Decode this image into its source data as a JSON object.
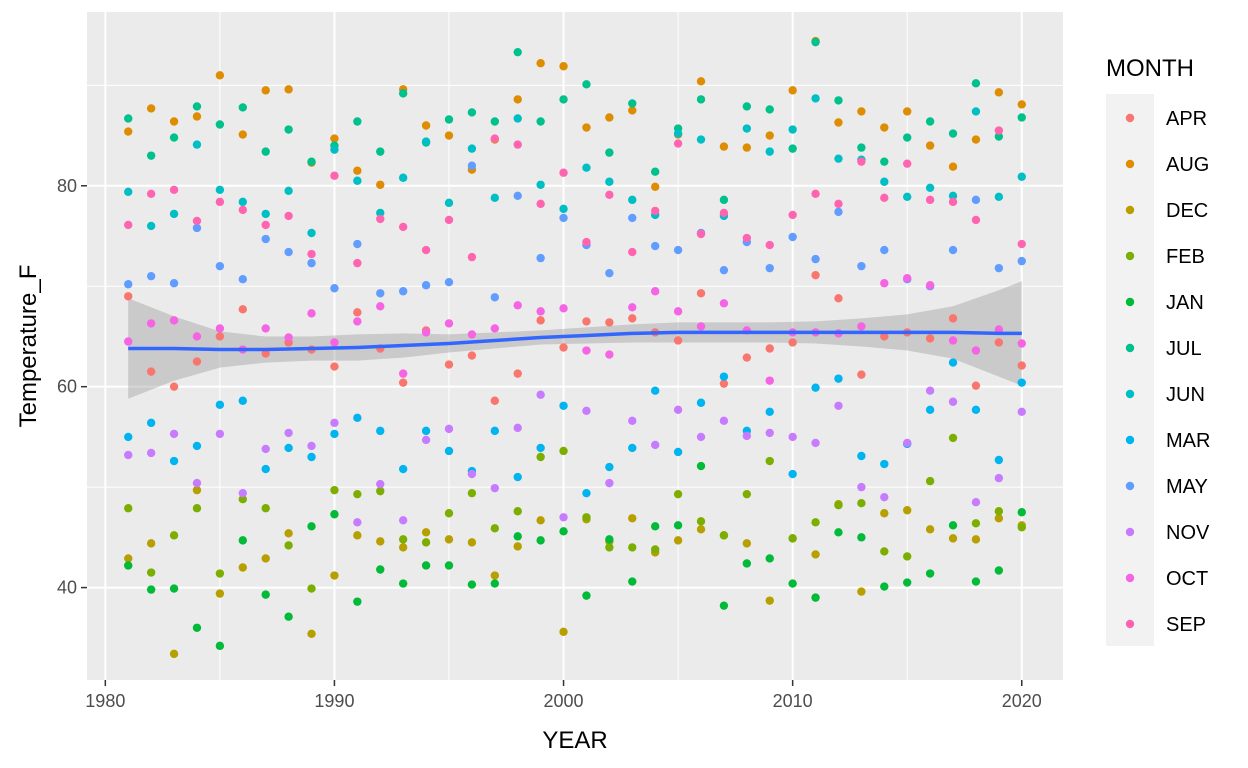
{
  "chart_data": {
    "type": "scatter",
    "title": "",
    "xlabel": "YEAR",
    "ylabel": "Temperature_F",
    "xlim": [
      1979.2,
      2021.8
    ],
    "ylim": [
      30.8,
      97.3
    ],
    "x_ticks": [
      1980,
      1990,
      2000,
      2010,
      2020
    ],
    "y_ticks": [
      40,
      60,
      80
    ],
    "grid": true,
    "legend": {
      "title": "MONTH",
      "placement": "right"
    },
    "series": [
      {
        "name": "APR",
        "color": "#F8766D",
        "x": [
          1981,
          1982,
          1983,
          1984,
          1985,
          1986,
          1987,
          1988,
          1989,
          1990,
          1991,
          1992,
          1993,
          1994,
          1995,
          1996,
          1997,
          1998,
          1999,
          2000,
          2001,
          2002,
          2003,
          2004,
          2005,
          2006,
          2007,
          2008,
          2009,
          2010,
          2011,
          2012,
          2013,
          2014,
          2015,
          2016,
          2017,
          2018,
          2019,
          2020
        ],
        "y": [
          69.0,
          61.5,
          60.0,
          62.5,
          65.0,
          67.7,
          63.3,
          64.4,
          63.7,
          62.0,
          67.4,
          63.8,
          60.4,
          65.6,
          62.2,
          63.1,
          58.6,
          61.3,
          66.6,
          63.9,
          66.5,
          66.4,
          66.8,
          65.4,
          64.6,
          69.3,
          60.3,
          62.9,
          63.8,
          64.4,
          71.1,
          68.8,
          61.2,
          65.0,
          65.4,
          64.8,
          66.8,
          60.1,
          64.4,
          62.1
        ]
      },
      {
        "name": "AUG",
        "color": "#DE8C00",
        "x": [
          1981,
          1982,
          1983,
          1984,
          1985,
          1986,
          1987,
          1988,
          1989,
          1990,
          1991,
          1992,
          1993,
          1994,
          1995,
          1996,
          1997,
          1998,
          1999,
          2000,
          2001,
          2002,
          2003,
          2004,
          2005,
          2006,
          2007,
          2008,
          2009,
          2010,
          2011,
          2012,
          2013,
          2014,
          2015,
          2016,
          2017,
          2018,
          2019,
          2020
        ],
        "y": [
          85.4,
          87.7,
          86.4,
          86.9,
          91.0,
          85.1,
          89.5,
          89.6,
          82.3,
          84.7,
          81.5,
          80.1,
          89.6,
          86.0,
          85.0,
          81.6,
          84.6,
          88.6,
          92.2,
          91.9,
          85.8,
          86.8,
          87.5,
          79.9,
          85.1,
          90.4,
          83.9,
          83.8,
          85.0,
          89.5,
          94.4,
          86.3,
          87.4,
          85.8,
          87.4,
          84.0,
          81.9,
          84.6,
          89.3,
          88.1
        ]
      },
      {
        "name": "DEC",
        "color": "#B79F00",
        "x": [
          1981,
          1982,
          1983,
          1984,
          1985,
          1986,
          1987,
          1988,
          1989,
          1990,
          1991,
          1992,
          1993,
          1994,
          1995,
          1996,
          1997,
          1998,
          1999,
          2000,
          2001,
          2002,
          2003,
          2004,
          2005,
          2006,
          2007,
          2008,
          2009,
          2010,
          2011,
          2012,
          2013,
          2014,
          2015,
          2016,
          2017,
          2018,
          2019,
          2020
        ],
        "y": [
          42.9,
          44.4,
          33.4,
          49.7,
          39.4,
          42.0,
          42.9,
          45.4,
          35.4,
          41.2,
          45.2,
          44.6,
          44.0,
          45.5,
          44.8,
          44.5,
          41.2,
          44.1,
          46.7,
          35.6,
          46.8,
          44.6,
          46.9,
          43.5,
          44.7,
          45.8,
          45.2,
          44.4,
          38.7,
          44.9,
          43.3,
          48.3,
          39.6,
          47.4,
          47.7,
          45.8,
          44.9,
          44.8,
          46.9,
          46.2
        ]
      },
      {
        "name": "FEB",
        "color": "#7CAE00",
        "x": [
          1981,
          1982,
          1983,
          1984,
          1985,
          1986,
          1987,
          1988,
          1989,
          1990,
          1991,
          1992,
          1993,
          1994,
          1995,
          1996,
          1997,
          1998,
          1999,
          2000,
          2001,
          2002,
          2003,
          2004,
          2005,
          2006,
          2007,
          2008,
          2009,
          2010,
          2011,
          2012,
          2013,
          2014,
          2015,
          2016,
          2017,
          2018,
          2019,
          2020
        ],
        "y": [
          47.9,
          41.5,
          45.2,
          47.9,
          41.4,
          48.8,
          47.9,
          44.2,
          39.9,
          49.7,
          49.3,
          49.6,
          44.8,
          44.5,
          47.4,
          49.4,
          45.9,
          47.6,
          53.0,
          53.6,
          47.0,
          44.0,
          44.0,
          43.8,
          49.3,
          46.6,
          45.2,
          49.3,
          52.6,
          44.9,
          46.5,
          48.2,
          48.4,
          43.6,
          43.1,
          50.6,
          54.9,
          46.4,
          47.6,
          46.0
        ]
      },
      {
        "name": "JAN",
        "color": "#00BA38",
        "x": [
          1981,
          1982,
          1983,
          1984,
          1985,
          1986,
          1987,
          1988,
          1989,
          1990,
          1991,
          1992,
          1993,
          1994,
          1995,
          1996,
          1997,
          1998,
          1999,
          2000,
          2001,
          2002,
          2003,
          2004,
          2005,
          2006,
          2007,
          2008,
          2009,
          2010,
          2011,
          2012,
          2013,
          2014,
          2015,
          2016,
          2017,
          2018,
          2019,
          2020
        ],
        "y": [
          42.2,
          39.8,
          39.9,
          36.0,
          34.2,
          44.7,
          39.3,
          37.1,
          46.1,
          47.3,
          38.6,
          41.8,
          40.4,
          42.2,
          42.2,
          40.3,
          40.4,
          45.1,
          44.7,
          45.6,
          39.2,
          44.8,
          40.6,
          46.1,
          46.2,
          52.1,
          38.2,
          42.4,
          42.9,
          40.4,
          39.0,
          45.5,
          45.0,
          40.1,
          40.5,
          41.4,
          46.2,
          40.6,
          41.7,
          47.5
        ]
      },
      {
        "name": "JUL",
        "color": "#00C08B",
        "x": [
          1981,
          1982,
          1983,
          1984,
          1985,
          1986,
          1987,
          1988,
          1989,
          1990,
          1991,
          1992,
          1993,
          1994,
          1995,
          1996,
          1997,
          1998,
          1999,
          2000,
          2001,
          2002,
          2003,
          2004,
          2005,
          2006,
          2007,
          2008,
          2009,
          2010,
          2011,
          2012,
          2013,
          2014,
          2015,
          2016,
          2017,
          2018,
          2019,
          2020
        ],
        "y": [
          86.7,
          83.0,
          84.8,
          87.9,
          86.1,
          87.8,
          83.4,
          85.6,
          82.4,
          84.0,
          86.4,
          83.4,
          89.2,
          84.3,
          86.6,
          87.3,
          86.4,
          93.3,
          86.4,
          88.6,
          90.1,
          83.3,
          88.2,
          81.4,
          85.7,
          88.6,
          78.6,
          87.9,
          87.6,
          83.7,
          94.3,
          88.5,
          83.8,
          82.4,
          84.8,
          86.4,
          85.2,
          90.2,
          84.9,
          86.8
        ]
      },
      {
        "name": "JUN",
        "color": "#00BFC4",
        "x": [
          1981,
          1982,
          1983,
          1984,
          1985,
          1986,
          1987,
          1988,
          1989,
          1990,
          1991,
          1992,
          1993,
          1994,
          1995,
          1996,
          1997,
          1998,
          1999,
          2000,
          2001,
          2002,
          2003,
          2004,
          2005,
          2006,
          2007,
          2008,
          2009,
          2010,
          2011,
          2012,
          2013,
          2014,
          2015,
          2016,
          2017,
          2018,
          2019,
          2020
        ],
        "y": [
          79.4,
          76.0,
          77.2,
          84.1,
          79.6,
          78.4,
          77.2,
          79.5,
          75.3,
          83.6,
          80.5,
          77.3,
          80.8,
          84.4,
          78.3,
          83.7,
          78.8,
          86.7,
          80.1,
          77.7,
          81.8,
          80.4,
          78.6,
          77.1,
          85.2,
          84.6,
          77.0,
          85.7,
          83.4,
          85.6,
          88.7,
          82.7,
          82.6,
          80.4,
          78.9,
          79.8,
          79.0,
          87.4,
          78.9,
          80.9
        ]
      },
      {
        "name": "MAR",
        "color": "#00B4EF",
        "x": [
          1981,
          1982,
          1983,
          1984,
          1985,
          1986,
          1987,
          1988,
          1989,
          1990,
          1991,
          1992,
          1993,
          1994,
          1995,
          1996,
          1997,
          1998,
          1999,
          2000,
          2001,
          2002,
          2003,
          2004,
          2005,
          2006,
          2007,
          2008,
          2009,
          2010,
          2011,
          2012,
          2013,
          2014,
          2015,
          2016,
          2017,
          2018,
          2019,
          2020
        ],
        "y": [
          55.0,
          56.4,
          52.6,
          54.1,
          58.2,
          58.6,
          51.8,
          53.9,
          53.0,
          55.3,
          56.9,
          55.6,
          51.8,
          55.6,
          53.6,
          51.6,
          55.6,
          51.0,
          53.9,
          58.1,
          49.4,
          52.0,
          53.9,
          59.6,
          53.5,
          58.4,
          61.0,
          55.6,
          57.5,
          51.3,
          59.9,
          60.8,
          53.1,
          52.3,
          54.3,
          57.7,
          62.4,
          57.7,
          52.7,
          60.4
        ]
      },
      {
        "name": "MAY",
        "color": "#619CFF",
        "x": [
          1981,
          1982,
          1983,
          1984,
          1985,
          1986,
          1987,
          1988,
          1989,
          1990,
          1991,
          1992,
          1993,
          1994,
          1995,
          1996,
          1997,
          1998,
          1999,
          2000,
          2001,
          2002,
          2003,
          2004,
          2005,
          2006,
          2007,
          2008,
          2009,
          2010,
          2011,
          2012,
          2013,
          2014,
          2015,
          2016,
          2017,
          2018,
          2019,
          2020
        ],
        "y": [
          70.2,
          71.0,
          70.3,
          75.8,
          72.0,
          70.7,
          74.7,
          73.4,
          72.3,
          69.8,
          74.2,
          69.3,
          69.5,
          70.1,
          70.4,
          82.0,
          68.9,
          79.0,
          72.8,
          76.8,
          74.1,
          71.3,
          76.8,
          74.0,
          73.6,
          75.3,
          71.6,
          74.4,
          71.8,
          74.9,
          72.7,
          77.4,
          72.0,
          73.6,
          70.7,
          70.0,
          73.6,
          78.6,
          71.8,
          72.5
        ]
      },
      {
        "name": "NOV",
        "color": "#C77CFF",
        "x": [
          1981,
          1982,
          1983,
          1984,
          1985,
          1986,
          1987,
          1988,
          1989,
          1990,
          1991,
          1992,
          1993,
          1994,
          1995,
          1996,
          1997,
          1998,
          1999,
          2000,
          2001,
          2002,
          2003,
          2004,
          2005,
          2006,
          2007,
          2008,
          2009,
          2010,
          2011,
          2012,
          2013,
          2014,
          2015,
          2016,
          2017,
          2018,
          2019,
          2020
        ],
        "y": [
          53.2,
          53.4,
          55.3,
          50.4,
          55.3,
          49.4,
          53.8,
          55.4,
          54.1,
          56.4,
          46.5,
          50.3,
          46.7,
          54.7,
          55.8,
          51.3,
          49.9,
          55.9,
          59.2,
          47.0,
          57.6,
          50.4,
          56.6,
          54.2,
          57.7,
          55.0,
          56.6,
          55.1,
          55.4,
          55.0,
          54.4,
          58.1,
          50.0,
          49.0,
          54.4,
          59.6,
          58.5,
          48.5,
          50.9,
          57.5
        ]
      },
      {
        "name": "OCT",
        "color": "#F564E3",
        "x": [
          1981,
          1982,
          1983,
          1984,
          1985,
          1986,
          1987,
          1988,
          1989,
          1990,
          1991,
          1992,
          1993,
          1994,
          1995,
          1996,
          1997,
          1998,
          1999,
          2000,
          2001,
          2002,
          2003,
          2004,
          2005,
          2006,
          2007,
          2008,
          2009,
          2010,
          2011,
          2012,
          2013,
          2014,
          2015,
          2016,
          2017,
          2018,
          2019,
          2020
        ],
        "y": [
          64.5,
          66.3,
          66.6,
          65.0,
          65.8,
          63.7,
          65.8,
          64.9,
          67.3,
          64.4,
          66.5,
          68.0,
          61.3,
          65.4,
          66.3,
          65.2,
          65.8,
          68.1,
          67.5,
          67.8,
          63.6,
          63.2,
          67.9,
          69.5,
          67.5,
          66.0,
          68.3,
          65.6,
          60.6,
          65.4,
          65.4,
          65.3,
          66.0,
          70.3,
          70.8,
          70.1,
          64.6,
          63.6,
          65.7,
          64.3
        ]
      },
      {
        "name": "SEP",
        "color": "#FF64B0",
        "x": [
          1981,
          1982,
          1983,
          1984,
          1985,
          1986,
          1987,
          1988,
          1989,
          1990,
          1991,
          1992,
          1993,
          1994,
          1995,
          1996,
          1997,
          1998,
          1999,
          2000,
          2001,
          2002,
          2003,
          2004,
          2005,
          2006,
          2007,
          2008,
          2009,
          2010,
          2011,
          2012,
          2013,
          2014,
          2015,
          2016,
          2017,
          2018,
          2019,
          2020
        ],
        "y": [
          76.1,
          79.2,
          79.6,
          76.5,
          78.4,
          77.6,
          76.1,
          77.0,
          73.2,
          81.0,
          72.3,
          76.7,
          75.9,
          73.6,
          76.6,
          72.9,
          84.7,
          84.1,
          78.2,
          81.3,
          74.4,
          79.1,
          73.4,
          77.5,
          84.2,
          75.2,
          77.3,
          74.8,
          74.1,
          77.1,
          79.2,
          78.2,
          82.4,
          78.8,
          82.2,
          78.6,
          78.4,
          76.6,
          85.5,
          74.2
        ]
      }
    ],
    "smooth": {
      "method": "loess",
      "color": "#3366FF",
      "x": [
        1981,
        1983,
        1985,
        1987,
        1989,
        1991,
        1993,
        1995,
        1997,
        1999,
        2001,
        2003,
        2005,
        2007,
        2009,
        2011,
        2013,
        2015,
        2017,
        2019,
        2020
      ],
      "y": [
        63.8,
        63.8,
        63.7,
        63.7,
        63.8,
        63.9,
        64.1,
        64.3,
        64.6,
        64.9,
        65.1,
        65.3,
        65.4,
        65.4,
        65.4,
        65.4,
        65.4,
        65.4,
        65.4,
        65.3,
        65.3
      ],
      "ci_lower": [
        58.8,
        60.6,
        61.9,
        62.4,
        62.6,
        62.6,
        62.9,
        63.4,
        63.8,
        64.2,
        64.3,
        64.4,
        64.4,
        64.4,
        64.4,
        64.3,
        64.0,
        63.6,
        62.8,
        61.0,
        60.1
      ],
      "ci_upper": [
        68.8,
        67.0,
        65.5,
        65.0,
        65.0,
        65.2,
        65.3,
        65.2,
        65.4,
        65.6,
        65.9,
        66.2,
        66.4,
        66.4,
        66.4,
        66.5,
        66.8,
        67.2,
        68.0,
        69.6,
        70.5
      ]
    }
  }
}
